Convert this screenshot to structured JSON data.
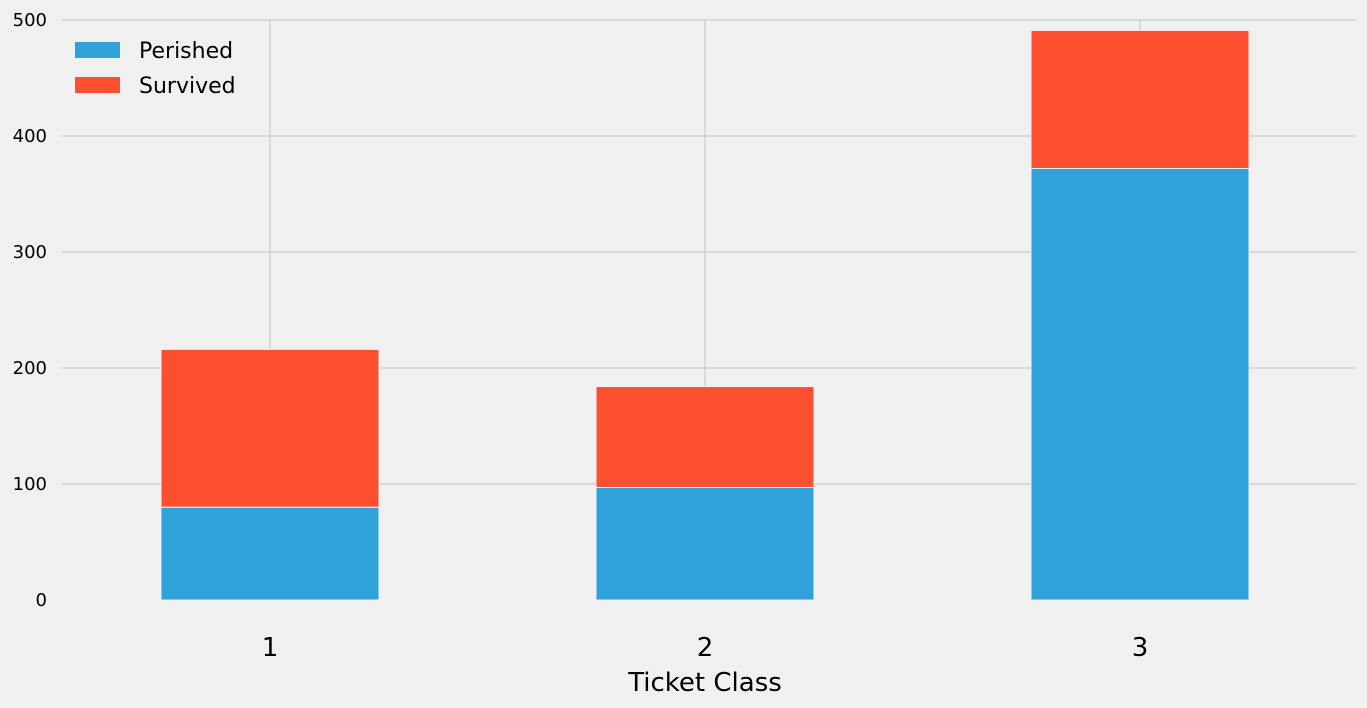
{
  "chart_data": {
    "type": "bar",
    "stacked": true,
    "categories": [
      "1",
      "2",
      "3"
    ],
    "series": [
      {
        "name": "Perished",
        "values": [
          80,
          97,
          372
        ],
        "color": "#30a2da"
      },
      {
        "name": "Survived",
        "values": [
          136,
          87,
          119
        ],
        "color": "#fc4f30"
      }
    ],
    "xlabel": "Ticket Class",
    "ylabel": "",
    "ylim": [
      0,
      500
    ],
    "yticks": [
      0,
      100,
      200,
      300,
      400,
      500
    ],
    "grid": true,
    "legend_position": "top-left",
    "background": "#f0f0f0",
    "grid_color": "#cbcbcb"
  }
}
